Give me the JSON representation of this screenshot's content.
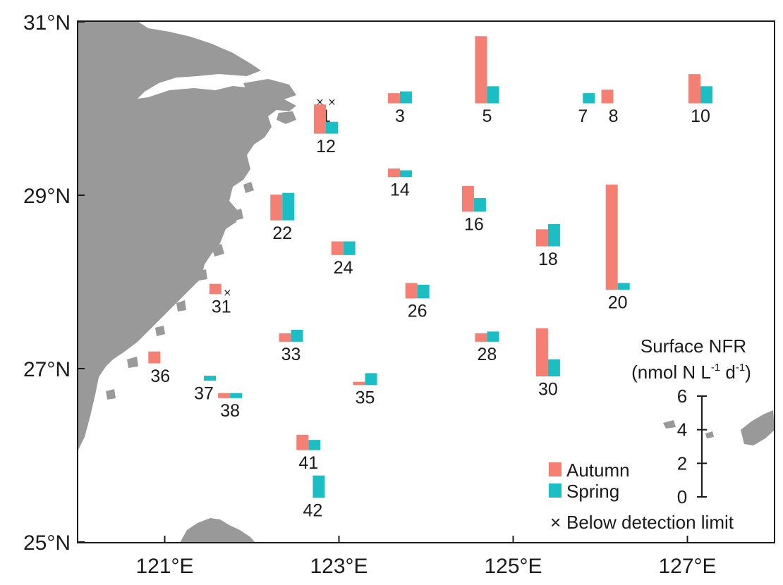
{
  "map": {
    "lon_range": [
      120,
      128
    ],
    "lat_range": [
      25,
      31
    ],
    "land_color": "#999999",
    "sea_color": "#ffffff",
    "x_ticks": [
      {
        "value": 121,
        "label": "121°E"
      },
      {
        "value": 123,
        "label": "123°E"
      },
      {
        "value": 125,
        "label": "125°E"
      },
      {
        "value": 127,
        "label": "127°E"
      }
    ],
    "y_ticks": [
      {
        "value": 31,
        "label": "31°N"
      },
      {
        "value": 29,
        "label": "29°N"
      },
      {
        "value": 27,
        "label": "27°N"
      },
      {
        "value": 25,
        "label": "25°N"
      }
    ]
  },
  "legend": {
    "autumn_label": "Autumn",
    "spring_label": "Spring",
    "below_label": "Below detection limit",
    "below_symbol": "×",
    "autumn_color": "#F47F72",
    "spring_color": "#19BFC4"
  },
  "scale": {
    "title": "Surface NFR",
    "unit_prefix": "(nmol N L",
    "unit_exp1": "-1",
    "unit_mid": " d",
    "unit_exp2": "-1",
    "unit_suffix": ")",
    "ticks": [
      "0",
      "2",
      "4",
      "6"
    ],
    "max": 6
  },
  "chart_data": {
    "type": "bar",
    "title": "Surface NFR",
    "unit": "nmol N L-1 d-1",
    "series": [
      {
        "name": "Autumn"
      },
      {
        "name": "Spring"
      }
    ],
    "stations": [
      {
        "id": "1",
        "lon": 122.85,
        "lat": 30.05,
        "autumn": null,
        "spring": null,
        "autumn_bdl": true,
        "spring_bdl": true
      },
      {
        "id": "3",
        "lon": 123.7,
        "lat": 30.05,
        "autumn": 0.6,
        "spring": 0.7
      },
      {
        "id": "5",
        "lon": 124.7,
        "lat": 30.05,
        "autumn": 3.9,
        "spring": 1.0
      },
      {
        "id": "7",
        "lon": 125.8,
        "lat": 30.05,
        "autumn": 0,
        "spring": 0.6
      },
      {
        "id": "8",
        "lon": 126.15,
        "lat": 30.05,
        "autumn": 0.8,
        "spring": 0
      },
      {
        "id": "10",
        "lon": 127.15,
        "lat": 30.05,
        "autumn": 1.7,
        "spring": 1.0
      },
      {
        "id": "12",
        "lon": 122.85,
        "lat": 29.7,
        "autumn": 1.7,
        "spring": 0.7
      },
      {
        "id": "14",
        "lon": 123.7,
        "lat": 29.2,
        "autumn": 0.5,
        "spring": 0.4
      },
      {
        "id": "16",
        "lon": 124.55,
        "lat": 28.8,
        "autumn": 1.5,
        "spring": 0.8
      },
      {
        "id": "18",
        "lon": 125.4,
        "lat": 28.4,
        "autumn": 1.0,
        "spring": 1.3
      },
      {
        "id": "20",
        "lon": 126.2,
        "lat": 27.9,
        "autumn": 6.1,
        "spring": 0.4
      },
      {
        "id": "22",
        "lon": 122.35,
        "lat": 28.7,
        "autumn": 1.5,
        "spring": 1.6
      },
      {
        "id": "24",
        "lon": 123.05,
        "lat": 28.3,
        "autumn": 0.8,
        "spring": 0.8
      },
      {
        "id": "26",
        "lon": 123.9,
        "lat": 27.8,
        "autumn": 0.9,
        "spring": 0.8
      },
      {
        "id": "28",
        "lon": 124.7,
        "lat": 27.3,
        "autumn": 0.5,
        "spring": 0.6
      },
      {
        "id": "30",
        "lon": 125.4,
        "lat": 26.9,
        "autumn": 2.8,
        "spring": 1.0
      },
      {
        "id": "31",
        "lon": 121.65,
        "lat": 27.85,
        "autumn": 0.6,
        "spring": null,
        "spring_bdl": true
      },
      {
        "id": "33",
        "lon": 122.45,
        "lat": 27.3,
        "autumn": 0.5,
        "spring": 0.7
      },
      {
        "id": "35",
        "lon": 123.3,
        "lat": 26.8,
        "autumn": 0.2,
        "spring": 0.7
      },
      {
        "id": "36",
        "lon": 120.95,
        "lat": 27.05,
        "autumn": 0.7,
        "spring": 0
      },
      {
        "id": "37",
        "lon": 121.45,
        "lat": 26.85,
        "autumn": 0,
        "spring": 0.3
      },
      {
        "id": "38",
        "lon": 121.75,
        "lat": 26.65,
        "autumn": 0.3,
        "spring": 0.3
      },
      {
        "id": "41",
        "lon": 122.65,
        "lat": 26.05,
        "autumn": 0.9,
        "spring": 0.6
      },
      {
        "id": "42",
        "lon": 122.7,
        "lat": 25.5,
        "autumn": 0,
        "spring": 1.3
      }
    ]
  }
}
